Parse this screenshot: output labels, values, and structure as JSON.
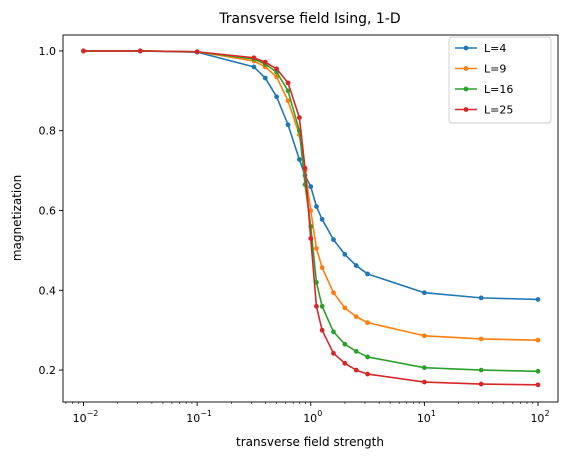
{
  "chart_data": {
    "type": "line",
    "title": "Transverse field Ising, 1-D",
    "xlabel": "transverse field strength",
    "ylabel": "magnetization",
    "xscale": "log",
    "xlim": [
      0.0066,
      150
    ],
    "ylim": [
      0.12,
      1.04
    ],
    "xticks": [
      {
        "value": 0.01,
        "base": "10",
        "exp": "−2"
      },
      {
        "value": 0.1,
        "base": "10",
        "exp": "−1"
      },
      {
        "value": 1,
        "base": "10",
        "exp": "0"
      },
      {
        "value": 10,
        "base": "10",
        "exp": "1"
      },
      {
        "value": 100,
        "base": "10",
        "exp": "2"
      }
    ],
    "yticks": [
      {
        "value": 0.2,
        "label": "0.2"
      },
      {
        "value": 0.4,
        "label": "0.4"
      },
      {
        "value": 0.6,
        "label": "0.6"
      },
      {
        "value": 0.8,
        "label": "0.8"
      },
      {
        "value": 1.0,
        "label": "1.0"
      }
    ],
    "grid": false,
    "legend_position": "top-right",
    "series": [
      {
        "name": "L=4",
        "color": "#1f77b4",
        "x": [
          0.01,
          0.0316,
          0.1,
          0.316,
          0.398,
          0.501,
          0.631,
          0.794,
          0.891,
          1.0,
          1.122,
          1.259,
          1.585,
          1.995,
          2.512,
          3.162,
          10,
          31.62,
          100
        ],
        "y": [
          1.0,
          1.0,
          0.997,
          0.96,
          0.932,
          0.885,
          0.815,
          0.728,
          0.688,
          0.66,
          0.61,
          0.578,
          0.527,
          0.49,
          0.462,
          0.441,
          0.394,
          0.381,
          0.377
        ]
      },
      {
        "name": "L=9",
        "color": "#ff7f0e",
        "x": [
          0.01,
          0.0316,
          0.1,
          0.316,
          0.398,
          0.501,
          0.631,
          0.794,
          0.891,
          1.0,
          1.122,
          1.259,
          1.585,
          1.995,
          2.512,
          3.162,
          10,
          31.62,
          100
        ],
        "y": [
          1.0,
          1.0,
          0.998,
          0.975,
          0.96,
          0.935,
          0.875,
          0.79,
          0.7,
          0.6,
          0.505,
          0.457,
          0.394,
          0.356,
          0.334,
          0.319,
          0.286,
          0.278,
          0.275
        ]
      },
      {
        "name": "L=16",
        "color": "#2ca02c",
        "x": [
          0.01,
          0.0316,
          0.1,
          0.316,
          0.398,
          0.501,
          0.631,
          0.794,
          0.891,
          1.0,
          1.122,
          1.259,
          1.585,
          1.995,
          2.512,
          3.162,
          10,
          31.62,
          100
        ],
        "y": [
          1.0,
          1.0,
          0.998,
          0.98,
          0.967,
          0.947,
          0.9,
          0.8,
          0.665,
          0.56,
          0.42,
          0.36,
          0.296,
          0.265,
          0.247,
          0.233,
          0.206,
          0.2,
          0.197
        ]
      },
      {
        "name": "L=25",
        "color": "#d62728",
        "x": [
          0.01,
          0.0316,
          0.1,
          0.316,
          0.398,
          0.501,
          0.631,
          0.794,
          0.891,
          1.0,
          1.122,
          1.259,
          1.585,
          1.995,
          2.512,
          3.162,
          10,
          31.62,
          100
        ],
        "y": [
          1.0,
          1.0,
          0.998,
          0.983,
          0.972,
          0.955,
          0.92,
          0.833,
          0.706,
          0.53,
          0.36,
          0.3,
          0.242,
          0.217,
          0.2,
          0.19,
          0.17,
          0.165,
          0.163
        ]
      }
    ]
  }
}
